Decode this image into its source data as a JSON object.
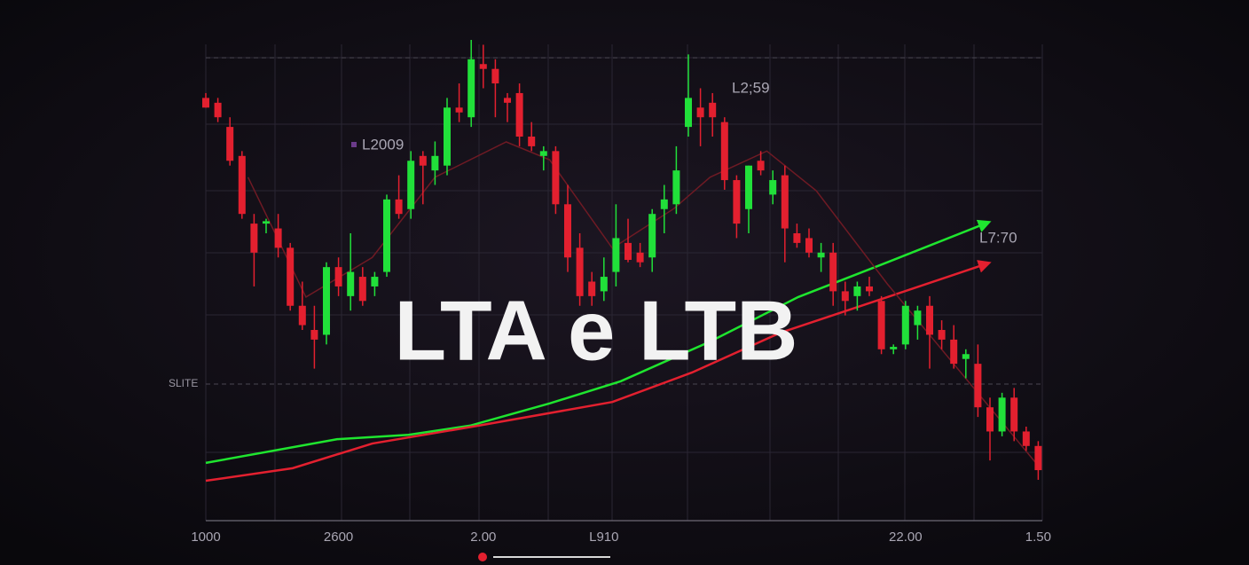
{
  "chart_data": {
    "type": "candlestick",
    "title": "LTA e LTB",
    "annotations": [
      "L2009",
      "L2;59",
      "L7:70"
    ],
    "categories": [
      "1000",
      null,
      null,
      null,
      null,
      null,
      null,
      null,
      null,
      null,
      null,
      "2600",
      null,
      null,
      null,
      null,
      null,
      null,
      null,
      null,
      null,
      null,
      null,
      "2.00",
      null,
      null,
      null,
      null,
      null,
      null,
      null,
      null,
      null,
      "L910",
      null,
      null,
      null,
      null,
      null,
      null,
      null,
      null,
      null,
      null,
      null,
      null,
      null,
      null,
      null,
      null,
      null,
      null,
      null,
      null,
      null,
      null,
      null,
      null,
      "22.00",
      null,
      null,
      null,
      null,
      null,
      null,
      null,
      null,
      null,
      null,
      "1.50"
    ],
    "open": [
      88,
      87,
      82,
      76,
      62,
      62,
      61,
      57,
      45,
      40,
      39,
      53,
      47,
      51,
      49,
      52,
      67,
      65,
      76,
      73,
      74,
      86,
      84,
      95,
      94,
      88,
      89,
      80,
      76,
      77,
      66,
      57,
      50,
      48,
      52,
      58,
      56,
      55,
      65,
      66,
      82,
      86,
      87,
      83,
      71,
      65,
      75,
      68,
      72,
      60,
      59,
      55,
      56,
      48,
      47,
      49,
      46,
      36,
      37,
      41,
      45,
      40,
      38,
      34,
      33,
      24,
      19,
      26,
      19,
      16
    ],
    "high": [
      89,
      88,
      84,
      77,
      64,
      63,
      64,
      58,
      50,
      45,
      54,
      55,
      60,
      53,
      52,
      68,
      72,
      77,
      77,
      79,
      88,
      91,
      100,
      99,
      96,
      89,
      91,
      83,
      78,
      78,
      70,
      60,
      52,
      55,
      66,
      63,
      58,
      65,
      70,
      78,
      97,
      90,
      89,
      84,
      72,
      74,
      77,
      73,
      74,
      62,
      61,
      58,
      58,
      50,
      50,
      51,
      47,
      37,
      46,
      45,
      47,
      42,
      41,
      36,
      37,
      26,
      27,
      28,
      20,
      17
    ],
    "low": [
      86,
      83,
      74,
      63,
      49,
      60,
      55,
      44,
      40,
      32,
      37,
      47,
      44,
      45,
      47,
      51,
      63,
      63,
      66,
      70,
      72,
      83,
      82,
      90,
      84,
      83,
      78,
      77,
      73,
      64,
      52,
      45,
      45,
      46,
      49,
      54,
      53,
      52,
      60,
      64,
      80,
      78,
      80,
      69,
      59,
      60,
      72,
      66,
      54,
      57,
      55,
      52,
      45,
      43,
      44,
      47,
      35,
      35,
      36,
      38,
      32,
      36,
      32,
      30,
      22,
      13,
      18,
      17,
      15,
      9
    ],
    "close": [
      86,
      84,
      75,
      64,
      56,
      62.5,
      57,
      45,
      41,
      38,
      53,
      49,
      52,
      46,
      51,
      67,
      64,
      75,
      74,
      76,
      86,
      85,
      96,
      94,
      91,
      87,
      80,
      78,
      77,
      66,
      55,
      47,
      47,
      51,
      59,
      54.5,
      54,
      64,
      67,
      73,
      88,
      84,
      84,
      71,
      62,
      74,
      73,
      71,
      61,
      58,
      56,
      56,
      48,
      46,
      49,
      48,
      36,
      36.5,
      45,
      44,
      39,
      38,
      33,
      35,
      24,
      19,
      26,
      19,
      16,
      11
    ],
    "up_color": "#21e03a",
    "down_color": "#e3202f",
    "lines": [
      {
        "color": "#1fe52f",
        "arrow": true,
        "x": [
          0,
          10.9,
          16.8,
          21.9,
          28.5,
          34.4,
          41.8,
          49.1,
          56.5,
          64.6
        ],
        "values": [
          12.5,
          17.4,
          18.3,
          20.2,
          24.8,
          29.4,
          37.6,
          46.8,
          54,
          62
        ]
      },
      {
        "color": "#e3202f",
        "arrow": true,
        "x": [
          0,
          7.2,
          13.8,
          22.6,
          33.7,
          40.3,
          47.6,
          56.5,
          64.6
        ],
        "values": [
          8.8,
          11.4,
          16.5,
          20.2,
          25.1,
          31.2,
          39.4,
          46.8,
          53.6
        ]
      },
      {
        "color": "#6e1a24",
        "arrow": false,
        "x": [
          3.5,
          8.3,
          13.8,
          19,
          24.9,
          28.5,
          33.7,
          38.8,
          41.8,
          46.5,
          50.6,
          56.5,
          69
        ],
        "values": [
          71.6,
          46.8,
          55,
          71.6,
          78.9,
          75.2,
          56.9,
          65.1,
          71.6,
          77,
          68.8,
          49.5,
          11.9
        ]
      }
    ],
    "hlines": [
      {
        "value": 28.8,
        "label": "SLITE"
      },
      {
        "value": 96.3
      }
    ],
    "ylim": [
      0,
      100
    ]
  }
}
